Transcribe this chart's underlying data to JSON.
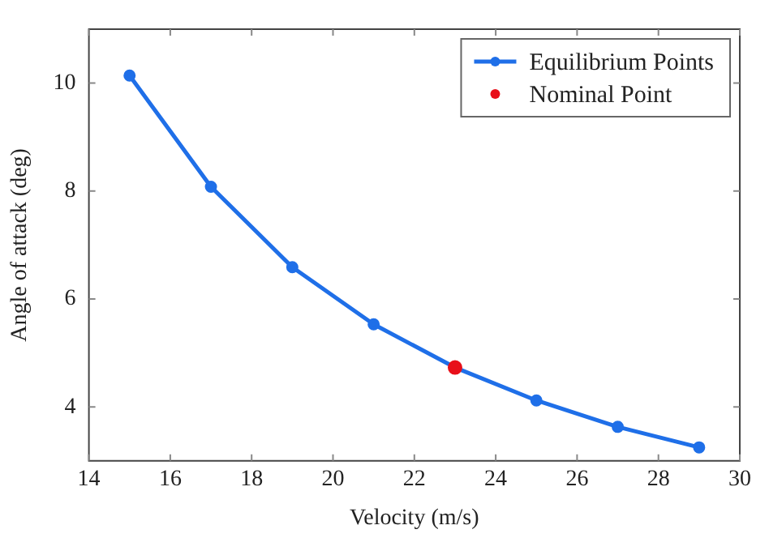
{
  "chart_data": {
    "type": "line",
    "xlabel": "Velocity (m/s)",
    "ylabel": "Angle of attack (deg)",
    "x": [
      15,
      17,
      19,
      21,
      23,
      25,
      27,
      29
    ],
    "series": [
      {
        "name": "Equilibrium Points",
        "color": "#1f6fe8",
        "marker": "circle",
        "values": [
          10.14,
          8.08,
          6.59,
          5.53,
          4.73,
          4.12,
          3.63,
          3.25
        ]
      },
      {
        "name": "Nominal Point",
        "type": "scatter",
        "color": "#e8101a",
        "marker": "circle",
        "x": [
          23
        ],
        "values": [
          4.73
        ]
      }
    ],
    "xlim": [
      14,
      30
    ],
    "xticks": [
      14,
      16,
      18,
      20,
      22,
      24,
      26,
      28,
      30
    ],
    "ylim": [
      3,
      11
    ],
    "yticks": [
      4,
      6,
      8,
      10
    ],
    "legend": "top right"
  }
}
